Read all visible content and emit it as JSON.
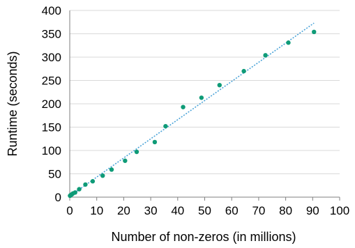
{
  "chart_data": {
    "type": "scatter",
    "title": "",
    "xlabel": "Number of non-zeros (in millions)",
    "ylabel": "Runtime (seconds)",
    "xlim": [
      0,
      100
    ],
    "ylim": [
      0,
      400
    ],
    "x_ticks": [
      0,
      10,
      20,
      30,
      40,
      50,
      60,
      70,
      80,
      90,
      100
    ],
    "y_ticks": [
      0,
      50,
      100,
      150,
      200,
      250,
      300,
      350,
      400
    ],
    "x_tick_labels": [
      "0",
      "10",
      "20",
      "30",
      "40",
      "50",
      "60",
      "70",
      "80",
      "90",
      "100"
    ],
    "y_tick_labels": [
      "0",
      "50",
      "100",
      "150",
      "200",
      "250",
      "300",
      "350",
      "400"
    ],
    "grid": "horizontal",
    "legend": "none",
    "series": [
      {
        "points": [
          {
            "x": 0.1,
            "y": 3
          },
          {
            "x": 0.3,
            "y": 4
          },
          {
            "x": 0.5,
            "y": 5
          },
          {
            "x": 0.8,
            "y": 6
          },
          {
            "x": 1.2,
            "y": 8
          },
          {
            "x": 2.0,
            "y": 10
          },
          {
            "x": 3.5,
            "y": 17
          },
          {
            "x": 5.8,
            "y": 27
          },
          {
            "x": 8.5,
            "y": 34
          },
          {
            "x": 12.2,
            "y": 46
          },
          {
            "x": 15.5,
            "y": 59
          },
          {
            "x": 20.5,
            "y": 78
          },
          {
            "x": 24.8,
            "y": 97
          },
          {
            "x": 31.5,
            "y": 118
          },
          {
            "x": 35.5,
            "y": 152
          },
          {
            "x": 42.0,
            "y": 193
          },
          {
            "x": 48.8,
            "y": 213
          },
          {
            "x": 55.5,
            "y": 240
          },
          {
            "x": 64.5,
            "y": 270
          },
          {
            "x": 72.5,
            "y": 304
          },
          {
            "x": 81.0,
            "y": 331
          },
          {
            "x": 90.5,
            "y": 354
          }
        ]
      }
    ],
    "trendline": {
      "style": "dotted",
      "x": [
        0,
        90.5
      ],
      "y": [
        2,
        373
      ]
    },
    "colors": {
      "points": "#0f9b77",
      "trendline": "#4aa3d8",
      "grid": "#d9d9d9",
      "axis": "#7f7f7f"
    }
  }
}
